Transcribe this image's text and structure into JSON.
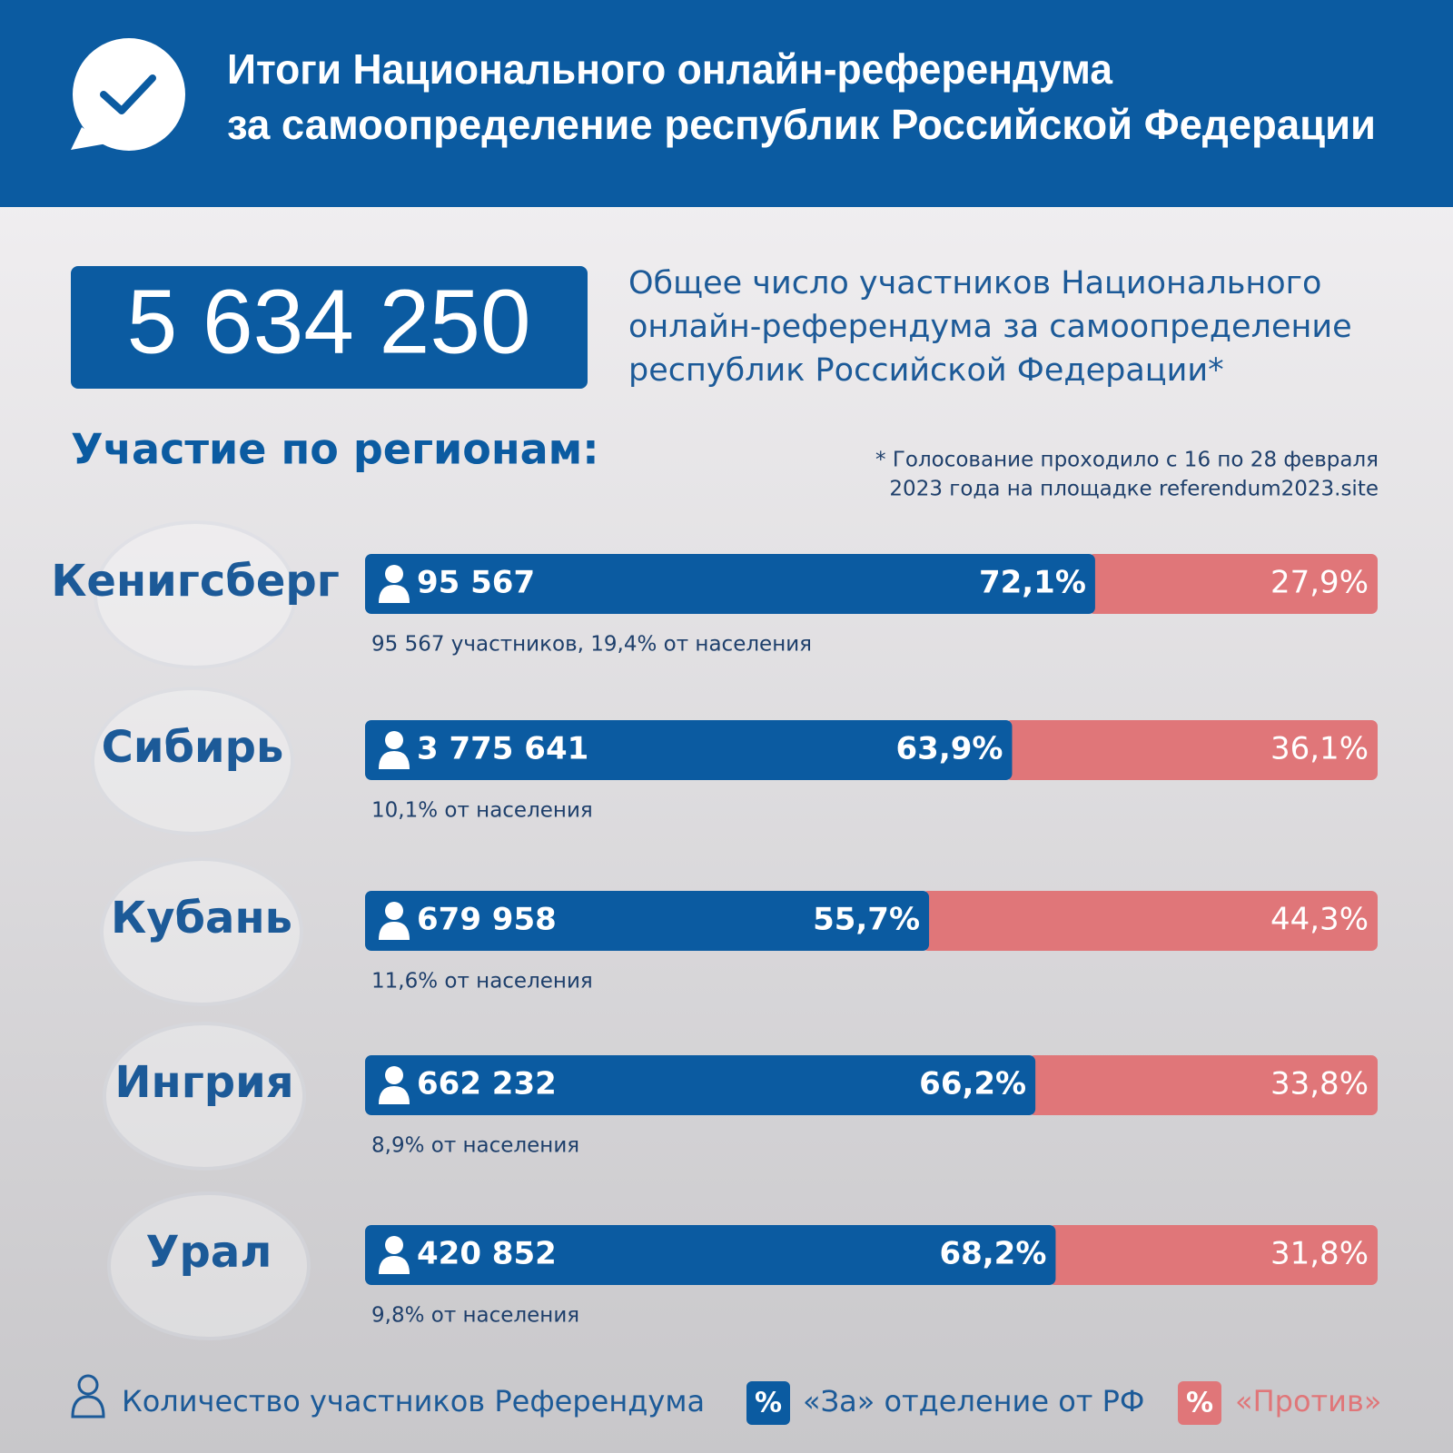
{
  "header": {
    "title_lines": [
      "Итоги Национального онлайн-референдума",
      "за самоопределение республик Российской Федерации"
    ]
  },
  "total": {
    "value": "5 634 250",
    "description_lines": [
      "Общее число участников Национального",
      "онлайн-референдума за самоопределение",
      "республик Российской Федерации*"
    ]
  },
  "regions_heading": "Участие по регионам:",
  "footnote_lines": [
    "* Голосование проходило с 16 по 28 февраля",
    "2023 года на площадке referendum2023.site"
  ],
  "regions": [
    {
      "name": "Кенигсберг",
      "participants": "95 567",
      "for": {
        "value": 72.1,
        "label": "72,1%"
      },
      "against": {
        "value": 27.9,
        "label": "27,9%"
      },
      "note": "95 567 участников, 19,4% от населения"
    },
    {
      "name": "Сибирь",
      "participants": "3 775 641",
      "for": {
        "value": 63.9,
        "label": "63,9%"
      },
      "against": {
        "value": 36.1,
        "label": "36,1%"
      },
      "note": "10,1% от населения"
    },
    {
      "name": "Кубань",
      "participants": "679 958",
      "for": {
        "value": 55.7,
        "label": "55,7%"
      },
      "against": {
        "value": 44.3,
        "label": "44,3%"
      },
      "note": "11,6% от населения"
    },
    {
      "name": "Ингрия",
      "participants": "662 232",
      "for": {
        "value": 66.2,
        "label": "66,2%"
      },
      "against": {
        "value": 33.8,
        "label": "33,8%"
      },
      "note": "8,9% от населения"
    },
    {
      "name": "Урал",
      "participants": "420 852",
      "for": {
        "value": 68.2,
        "label": "68,2%"
      },
      "against": {
        "value": 31.8,
        "label": "31,8%"
      },
      "note": "9,8% от населения"
    }
  ],
  "legend": {
    "participants": "Количество участников Референдума",
    "for_symbol": "%",
    "for": "«За» отделение от РФ",
    "against_symbol": "%",
    "against": "«Против»"
  }
}
